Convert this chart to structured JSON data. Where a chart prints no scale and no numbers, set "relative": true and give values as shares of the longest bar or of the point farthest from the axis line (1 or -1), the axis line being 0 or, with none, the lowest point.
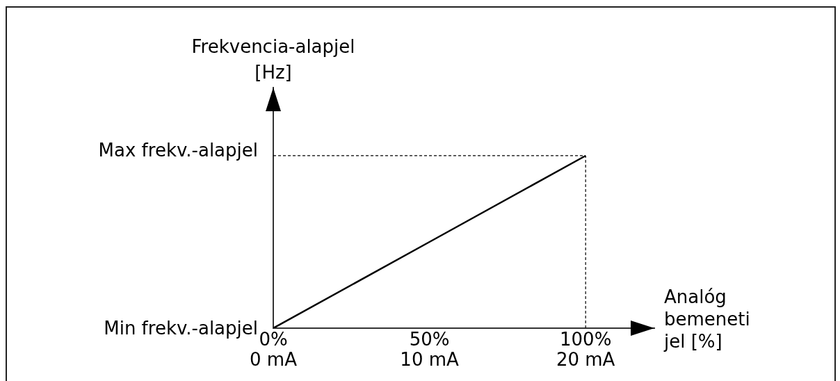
{
  "chart_data": {
    "type": "line",
    "relative": true,
    "ylabel": "Frekvencia-alapjel\n[Hz]",
    "xlabel": "Analóg\nbemeneti\njel [%]",
    "categories": [
      "0%\n0 mA",
      "50%\n10 mA",
      "100%\n20 mA"
    ],
    "series": [
      {
        "color": "#000000",
        "values": [
          0,
          0.5,
          1
        ]
      },
      {
        "name": "Max frekv.-alapjel",
        "color": "#000000",
        "line_style": "dashed",
        "values": [
          1,
          1,
          1
        ]
      }
    ],
    "ref_lines": [
      {
        "axis": "x",
        "value": "100%\n20 mA",
        "line_style": "dashed",
        "color": "#000000"
      }
    ],
    "annotations": [
      "Min frekv.-alapjel"
    ],
    "legend": false
  }
}
